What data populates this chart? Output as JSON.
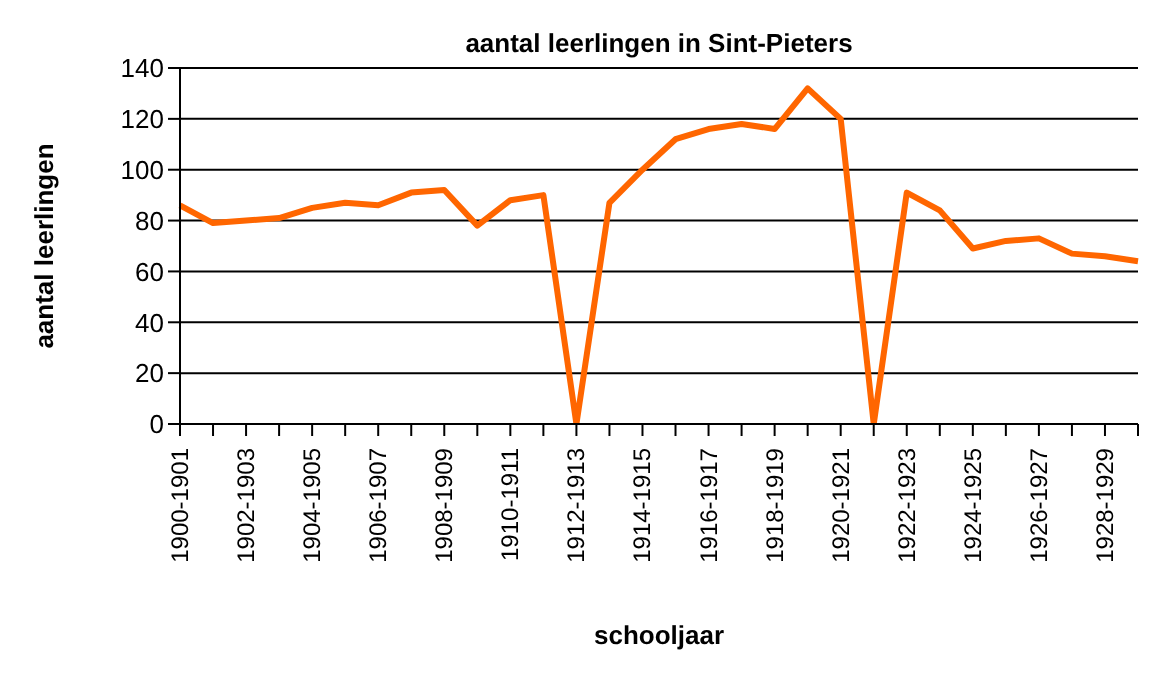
{
  "chart_data": {
    "type": "line",
    "title": "aantal leerlingen in Sint-Pieters",
    "xlabel": "schooljaar",
    "ylabel": "aantal leerlingen",
    "categories": [
      "1900-1901",
      null,
      "1902-1903",
      null,
      "1904-1905",
      null,
      "1906-1907",
      null,
      "1908-1909",
      null,
      "1910-1911",
      null,
      "1912-1913",
      null,
      "1914-1915",
      null,
      "1916-1917",
      null,
      "1918-1919",
      null,
      "1920-1921",
      null,
      "1922-1923",
      null,
      "1924-1925",
      null,
      "1926-1927",
      null,
      "1928-1929",
      null
    ],
    "series": [
      {
        "color": "#ff6600",
        "values": [
          86,
          79,
          80,
          81,
          85,
          87,
          86,
          91,
          92,
          78,
          88,
          90,
          0,
          87,
          100,
          112,
          116,
          118,
          116,
          132,
          120,
          0,
          91,
          84,
          69,
          72,
          73,
          67,
          66,
          64
        ]
      }
    ],
    "ylim": [
      0,
      140
    ],
    "yticks": [
      0,
      20,
      40,
      60,
      80,
      100,
      120,
      140
    ],
    "grid": "y",
    "marker": "none",
    "line_style": "solid"
  }
}
